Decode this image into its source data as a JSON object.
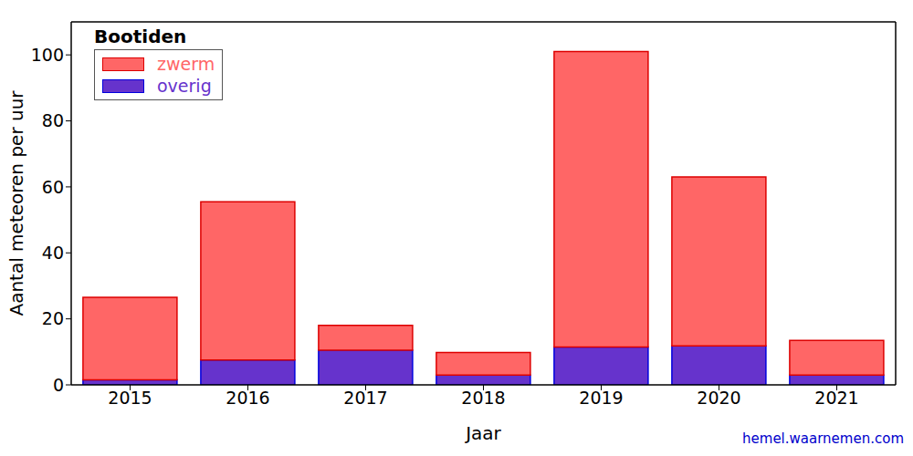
{
  "chart_data": {
    "type": "bar",
    "title": "Bootiden",
    "x_label": "Jaar",
    "y_label": "Aantal meteoren per uur",
    "annotations": [
      "hemel.waarnemen.com"
    ],
    "categories": [
      "2015",
      "2016",
      "2017",
      "2018",
      "2019",
      "2020",
      "2021"
    ],
    "series": [
      {
        "name": "zwerm",
        "color": "#ff6666",
        "values": [
          25,
          48,
          7.5,
          6.8,
          89.5,
          51.2,
          10.5
        ]
      },
      {
        "name": "overig",
        "color": "#6633cc",
        "values": [
          1.5,
          7.5,
          10.5,
          3,
          11.5,
          11.8,
          3
        ]
      }
    ],
    "stacked": true,
    "legend": "upper left",
    "ylim": [
      0,
      110
    ],
    "yticks": [
      0,
      20,
      40,
      60,
      80,
      100
    ],
    "grid": false
  }
}
